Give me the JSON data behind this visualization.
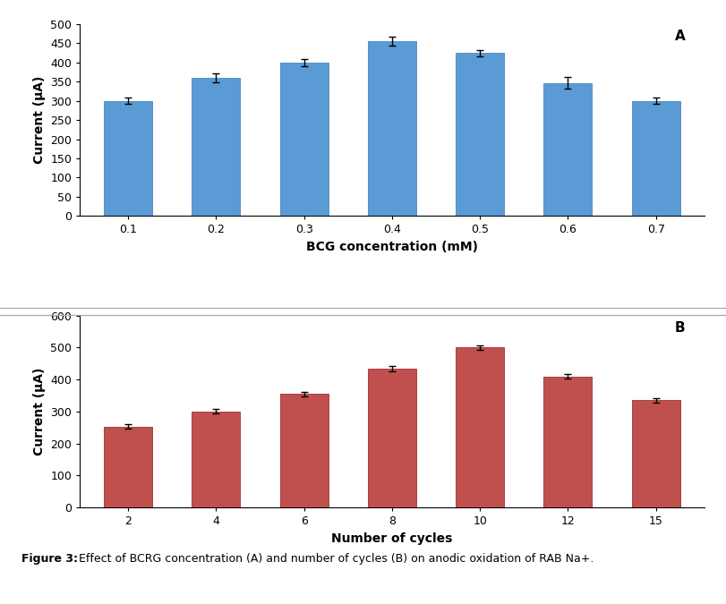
{
  "chart_A": {
    "categories": [
      "0.1",
      "0.2",
      "0.3",
      "0.4",
      "0.5",
      "0.6",
      "0.7"
    ],
    "values": [
      300,
      360,
      400,
      455,
      425,
      347,
      300
    ],
    "errors": [
      8,
      12,
      10,
      12,
      8,
      15,
      8
    ],
    "bar_color": "#5B9BD5",
    "bar_edge_color": "#4A86C0",
    "ylabel": "Current (μA)",
    "xlabel": "BCG concentration (mM)",
    "label": "A",
    "ylim": [
      0,
      500
    ],
    "yticks": [
      0,
      50,
      100,
      150,
      200,
      250,
      300,
      350,
      400,
      450,
      500
    ]
  },
  "chart_B": {
    "categories": [
      "2",
      "4",
      "6",
      "8",
      "10",
      "12",
      "15"
    ],
    "values": [
      253,
      300,
      355,
      435,
      500,
      410,
      335
    ],
    "errors": [
      7,
      7,
      7,
      8,
      8,
      8,
      8
    ],
    "bar_color": "#C0504D",
    "bar_edge_color": "#A03030",
    "ylabel": "Current (μA)",
    "xlabel": "Number of cycles",
    "label": "B",
    "ylim": [
      0,
      600
    ],
    "yticks": [
      0,
      100,
      200,
      300,
      400,
      500,
      600
    ]
  },
  "caption_bold": "Figure 3:",
  "caption_rest": " Effect of BCRG concentration (A) and number of cycles (B) on anodic oxidation of RAB Na+.",
  "background_color": "#ffffff",
  "bar_width": 0.55,
  "error_capsize": 3,
  "error_elinewidth": 1.0,
  "error_capthick": 1.0,
  "error_color": "black",
  "tick_fontsize": 9,
  "label_fontsize": 10,
  "panel_label_fontsize": 11,
  "caption_fontsize": 9
}
